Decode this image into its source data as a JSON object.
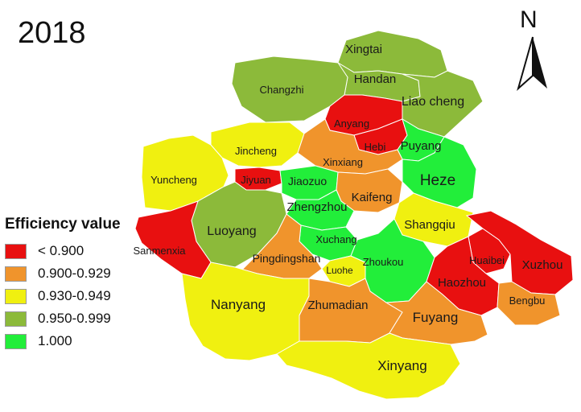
{
  "title": "2018",
  "north_label": "N",
  "legend": {
    "title": "Efficiency value",
    "items": [
      {
        "label": "< 0.900",
        "color": "#e81010"
      },
      {
        "label": "0.900-0.929",
        "color": "#f0942c"
      },
      {
        "label": "0.930-0.949",
        "color": "#f0f010"
      },
      {
        "label": "0.950-0.999",
        "color": "#8cba3a"
      },
      {
        "label": "1.000",
        "color": "#22ee3a"
      }
    ]
  },
  "cities": [
    {
      "name": "Xingtai",
      "class": "0.950-0.999"
    },
    {
      "name": "Handan",
      "class": "0.950-0.999"
    },
    {
      "name": "Changzhi",
      "class": "0.950-0.999"
    },
    {
      "name": "Liao cheng",
      "class": "0.950-0.999"
    },
    {
      "name": "Anyang",
      "class": "< 0.900"
    },
    {
      "name": "Hebi",
      "class": "< 0.900"
    },
    {
      "name": "Puyang",
      "class": "1.000"
    },
    {
      "name": "Jincheng",
      "class": "0.930-0.949"
    },
    {
      "name": "Yuncheng",
      "class": "0.930-0.949"
    },
    {
      "name": "Jiyuan",
      "class": "< 0.900"
    },
    {
      "name": "Xinxiang",
      "class": "0.900-0.929"
    },
    {
      "name": "Jiaozuo",
      "class": "1.000"
    },
    {
      "name": "Heze",
      "class": "1.000"
    },
    {
      "name": "Kaifeng",
      "class": "0.900-0.929"
    },
    {
      "name": "Zhengzhou",
      "class": "1.000"
    },
    {
      "name": "Shangqiu",
      "class": "0.930-0.949"
    },
    {
      "name": "Luoyang",
      "class": "0.950-0.999"
    },
    {
      "name": "Sanmenxia",
      "class": "< 0.900"
    },
    {
      "name": "Xuchang",
      "class": "1.000"
    },
    {
      "name": "Pingdingshan",
      "class": "0.900-0.929"
    },
    {
      "name": "Luohe",
      "class": "0.930-0.949"
    },
    {
      "name": "Zhoukou",
      "class": "1.000"
    },
    {
      "name": "Huaibei",
      "class": "< 0.900"
    },
    {
      "name": "Xuzhou",
      "class": "< 0.900"
    },
    {
      "name": "Haozhou",
      "class": "< 0.900"
    },
    {
      "name": "Bengbu",
      "class": "0.900-0.929"
    },
    {
      "name": "Nanyang",
      "class": "0.930-0.949"
    },
    {
      "name": "Zhumadian",
      "class": "0.900-0.929"
    },
    {
      "name": "Fuyang",
      "class": "0.900-0.929"
    },
    {
      "name": "Xinyang",
      "class": "0.930-0.949"
    }
  ]
}
